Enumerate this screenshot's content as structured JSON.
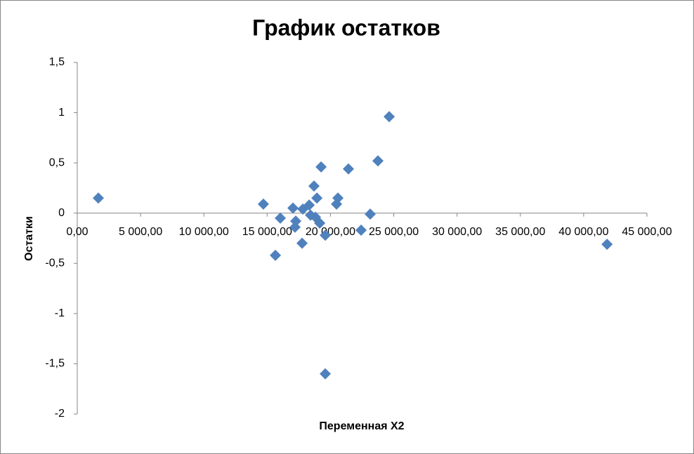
{
  "chart_data": {
    "type": "scatter",
    "title": "График остатков",
    "x_label": "Переменная X2",
    "y_label": "Остатки",
    "series": [
      {
        "color": "#4f81bd",
        "x": [
          1665,
          14700,
          15650,
          16040,
          17040,
          17260,
          17200,
          17760,
          17820,
          18320,
          18430,
          18700,
          18815,
          18930,
          19150,
          19260,
          19590,
          19590,
          20480,
          20590,
          21420,
          22420,
          23140,
          23750,
          24640,
          41850
        ],
        "values": [
          0.15,
          0.09,
          -0.42,
          -0.05,
          0.05,
          -0.08,
          -0.14,
          -0.3,
          0.04,
          0.08,
          -0.02,
          0.27,
          -0.04,
          0.15,
          -0.1,
          0.46,
          -0.22,
          -1.6,
          0.09,
          0.15,
          0.44,
          -0.17,
          -0.01,
          0.52,
          0.96,
          -0.31
        ]
      }
    ],
    "xlim": [
      0,
      45000
    ],
    "xticks": [
      {
        "value": 0,
        "label": "0,00"
      },
      {
        "value": 5000,
        "label": "5 000,00"
      },
      {
        "value": 10000,
        "label": "10 000,00"
      },
      {
        "value": 15000,
        "label": "15 000,00"
      },
      {
        "value": 20000,
        "label": "20 000,00"
      },
      {
        "value": 25000,
        "label": "25 000,00"
      },
      {
        "value": 30000,
        "label": "30 000,00"
      },
      {
        "value": 35000,
        "label": "35 000,00"
      },
      {
        "value": 40000,
        "label": "40 000,00"
      },
      {
        "value": 45000,
        "label": "45 000,00"
      }
    ],
    "ylim": [
      -2,
      1.5
    ],
    "yticks": [
      -2,
      {
        "value": -1.5,
        "label": "-1,5"
      },
      -1,
      {
        "value": -0.5,
        "label": "-0,5"
      },
      0,
      {
        "value": 0.5,
        "label": "0,5"
      },
      1,
      {
        "value": 1.5,
        "label": "1,5"
      }
    ],
    "grid": false
  }
}
